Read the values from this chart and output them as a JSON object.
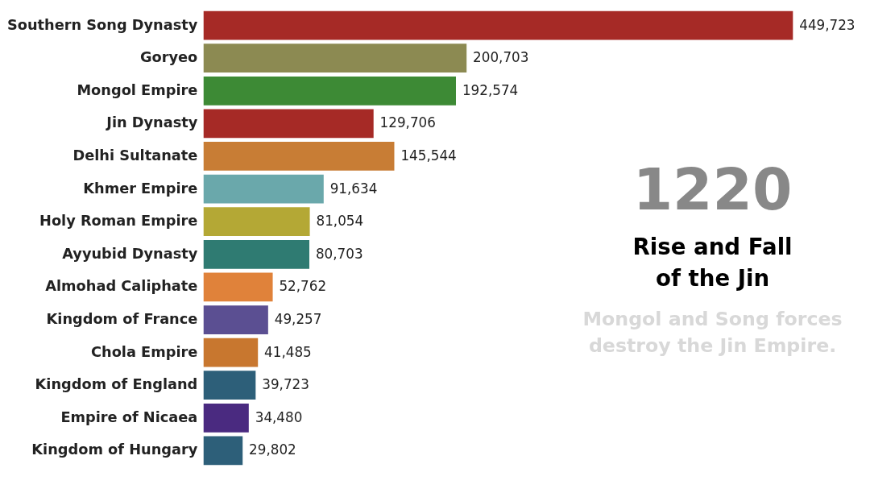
{
  "chart_data": {
    "type": "bar",
    "orientation": "horizontal",
    "categories": [
      "Southern Song Dynasty",
      "Goryeo",
      "Mongol Empire",
      "Jin Dynasty",
      "Delhi Sultanate",
      "Khmer Empire",
      "Holy Roman Empire",
      "Ayyubid Dynasty",
      "Almohad Caliphate",
      "Kingdom of France",
      "Chola Empire",
      "Kingdom of England",
      "Empire of Nicaea",
      "Kingdom of Hungary"
    ],
    "values": [
      449723,
      200703,
      192574,
      129706,
      145544,
      91634,
      81054,
      80703,
      52762,
      49257,
      41485,
      39723,
      34480,
      29802
    ],
    "value_labels": [
      "449,723",
      "200,703",
      "192,574",
      "129,706",
      "145,544",
      "91,634",
      "81,054",
      "80,703",
      "52,762",
      "49,257",
      "41,485",
      "39,723",
      "34,480",
      "29,802"
    ],
    "colors": [
      "#a62a26",
      "#8c8a52",
      "#3d8a35",
      "#a62a26",
      "#c87d35",
      "#6aa8ab",
      "#b4a835",
      "#2f7b72",
      "#e0823a",
      "#5b4f92",
      "#c8772f",
      "#2d5f79",
      "#4a2a80",
      "#2d5f79"
    ],
    "annotations": [
      "1220",
      "Rise and Fall of the Jin",
      "Mongol and Song forces destroy the Jin Empire."
    ]
  }
}
